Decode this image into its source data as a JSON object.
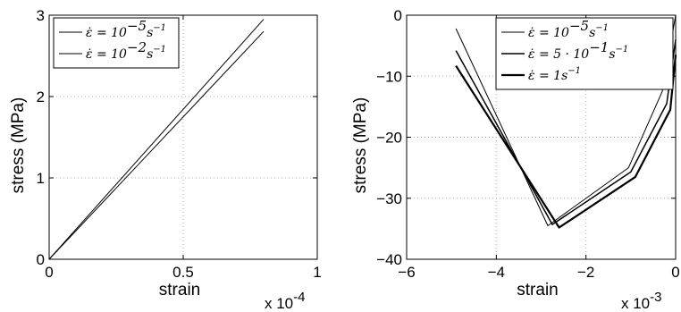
{
  "chart_data": [
    {
      "type": "line",
      "xlabel": "strain",
      "ylabel": "stress (MPa)",
      "x_multiplier": "x 10",
      "x_multiplier_exp": "-4",
      "xlim": [
        0,
        1
      ],
      "ylim": [
        0,
        3
      ],
      "xticks": [
        "0",
        "0.5",
        "1"
      ],
      "yticks": [
        "0",
        "1",
        "2",
        "3"
      ],
      "grid": true,
      "legend_position": "top-left",
      "series": [
        {
          "name": "ε̇ = 10⁻⁵s⁻¹",
          "legend_base": "ε̇ = 10",
          "legend_exp": "−5",
          "legend_tail": "s",
          "legend_tail_exp": "−1",
          "line_width": 1,
          "x": [
            0,
            0.8
          ],
          "y": [
            0,
            2.95
          ]
        },
        {
          "name": "ε̇ = 10⁻²s⁻¹",
          "legend_base": "ε̇ = 10",
          "legend_exp": "−2",
          "legend_tail": "s",
          "legend_tail_exp": "−1",
          "line_width": 1,
          "x": [
            0,
            0.8
          ],
          "y": [
            0,
            2.8
          ]
        }
      ]
    },
    {
      "type": "line",
      "xlabel": "strain",
      "ylabel": "stress (MPa)",
      "x_multiplier": "x 10",
      "x_multiplier_exp": "-3",
      "xlim": [
        -6,
        0
      ],
      "ylim": [
        -40,
        0
      ],
      "xticks": [
        "−6",
        "−4",
        "−2",
        "0"
      ],
      "yticks": [
        "−40",
        "−30",
        "−20",
        "−10",
        "0"
      ],
      "grid": true,
      "legend_position": "top-right",
      "series": [
        {
          "name": "ε̇ = 10⁻⁵s⁻¹",
          "legend_base": "ε̇ = 10",
          "legend_exp": "−5",
          "legend_tail": "s",
          "legend_tail_exp": "−1",
          "line_width": 1,
          "x": [
            -4.9,
            -2.85,
            -1.05,
            -0.3,
            0
          ],
          "y": [
            -2.2,
            -34.5,
            -25.0,
            -12.5,
            0
          ]
        },
        {
          "name": "ε̇ = 5·10⁻¹s⁻¹",
          "legend_base": "ε̇ = 5 · 10",
          "legend_exp": "−1",
          "legend_tail": "s",
          "legend_tail_exp": "−1",
          "line_width": 1.5,
          "x": [
            -4.9,
            -2.75,
            -1.0,
            -0.2,
            0
          ],
          "y": [
            -5.8,
            -34.3,
            -25.7,
            -14.5,
            -4
          ]
        },
        {
          "name": "ε̇ = 1s⁻¹",
          "legend_base": "ε̇ = 1",
          "legend_exp": "",
          "legend_tail": "s",
          "legend_tail_exp": "−1",
          "line_width": 2.2,
          "x": [
            -4.9,
            -2.6,
            -0.9,
            -0.12,
            0
          ],
          "y": [
            -8.3,
            -34.8,
            -26.5,
            -15.5,
            -6.5
          ]
        }
      ]
    }
  ]
}
